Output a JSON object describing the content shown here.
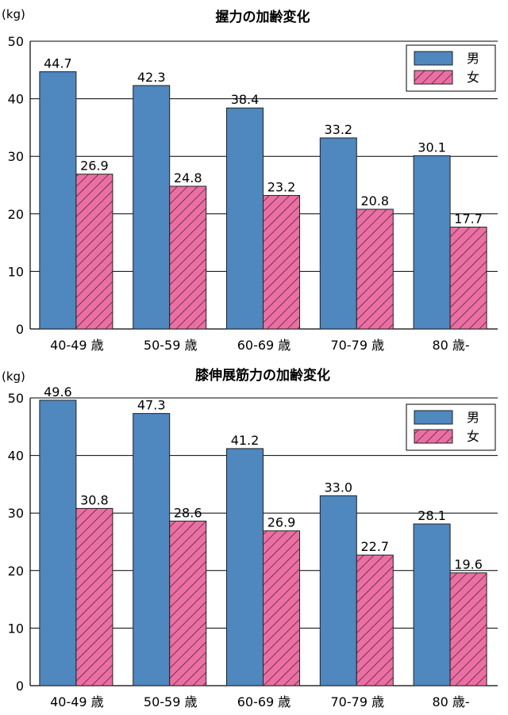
{
  "chart_data": [
    {
      "type": "bar",
      "title": "握力の加齢変化",
      "unit_label": "(kg)",
      "categories": [
        "40-49 歳",
        "50-59 歳",
        "60-69 歳",
        "70-79 歳",
        "80 歳-"
      ],
      "series": [
        {
          "name": "男",
          "values": [
            44.7,
            42.3,
            38.4,
            33.2,
            30.1
          ],
          "color": "#4f87bf"
        },
        {
          "name": "女",
          "values": [
            26.9,
            24.8,
            23.2,
            20.8,
            17.7
          ],
          "color": "#ec6fa3"
        }
      ],
      "data_labels": [
        [
          "44.7",
          "42.3",
          "38.4",
          "33.2",
          "30.1"
        ],
        [
          "26.9",
          "24.8",
          "23.2",
          "20.8",
          "17.7"
        ]
      ],
      "yticks": [
        "0",
        "10",
        "20",
        "30",
        "40",
        "50"
      ],
      "ylim": [
        0,
        50
      ],
      "grid": true,
      "legend_position": "top-right"
    },
    {
      "type": "bar",
      "title": "膝伸展筋力の加齢変化",
      "unit_label": "(kg)",
      "categories": [
        "40-49 歳",
        "50-59 歳",
        "60-69 歳",
        "70-79 歳",
        "80 歳-"
      ],
      "series": [
        {
          "name": "男",
          "values": [
            49.6,
            47.3,
            41.2,
            33.0,
            28.1
          ],
          "color": "#4f87bf"
        },
        {
          "name": "女",
          "values": [
            30.8,
            28.6,
            26.9,
            22.7,
            19.6
          ],
          "color": "#ec6fa3"
        }
      ],
      "data_labels": [
        [
          "49.6",
          "47.3",
          "41.2",
          "33.0",
          "28.1"
        ],
        [
          "30.8",
          "28.6",
          "26.9",
          "22.7",
          "19.6"
        ]
      ],
      "yticks": [
        "0",
        "10",
        "20",
        "30",
        "40",
        "50"
      ],
      "ylim": [
        0,
        50
      ],
      "grid": true,
      "legend_position": "top-right"
    }
  ]
}
